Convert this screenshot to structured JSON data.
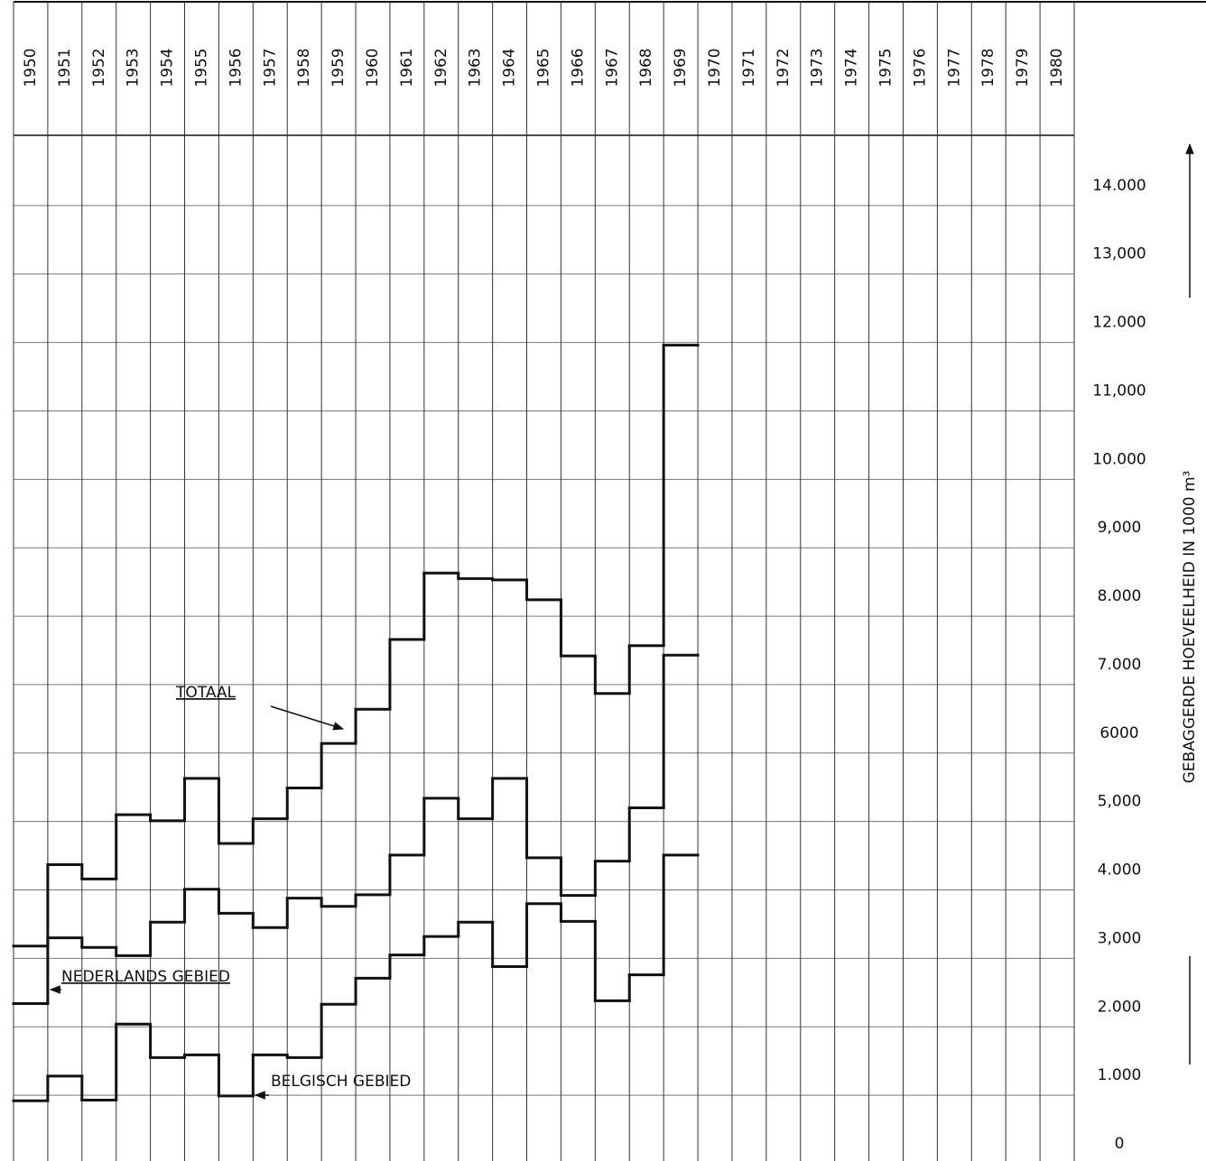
{
  "chart_data": {
    "type": "step",
    "y_label": "GEBAGGERDE HOEVEELHEID   IN 1000 m³",
    "categories": [
      "1950",
      "1951",
      "1952",
      "1953",
      "1954",
      "1955",
      "1956",
      "1957",
      "1958",
      "1959",
      "1960",
      "1961",
      "1962",
      "1963",
      "1964",
      "1965",
      "1966",
      "1967",
      "1968",
      "1969",
      "1970",
      "1971",
      "1972",
      "1973",
      "1974",
      "1975",
      "1976",
      "1977",
      "1978",
      "1979",
      "1980"
    ],
    "series": [
      {
        "name": "TOTAAL",
        "color": "#111111",
        "values": [
          3180,
          4370,
          4160,
          5100,
          5010,
          5630,
          4680,
          5040,
          5490,
          6140,
          6640,
          7660,
          8630,
          8550,
          8530,
          8240,
          7420,
          6870,
          7570,
          11960,
          null,
          null,
          null,
          null,
          null,
          null,
          null,
          null,
          null,
          null,
          null
        ]
      },
      {
        "name": "NEDERLANDS GEBIED",
        "color": "#111111",
        "values": [
          2340,
          3300,
          3160,
          3040,
          3530,
          4010,
          3660,
          3450,
          3880,
          3760,
          3930,
          4510,
          5340,
          5040,
          5630,
          4470,
          3920,
          4420,
          5200,
          7430,
          null,
          null,
          null,
          null,
          null,
          null,
          null,
          null,
          null,
          null,
          null
        ]
      },
      {
        "name": "BELGISCH GEBIED",
        "color": "#111111",
        "values": [
          920,
          1280,
          930,
          2040,
          1550,
          1590,
          990,
          1590,
          1550,
          2330,
          2710,
          3050,
          3320,
          3530,
          2880,
          3800,
          3540,
          2380,
          2760,
          4510,
          null,
          null,
          null,
          null,
          null,
          null,
          null,
          null,
          null,
          null,
          null
        ]
      }
    ],
    "ylim": [
      0,
      15000
    ],
    "yticks": [
      0,
      {
        "value": 1000,
        "label": "1.000"
      },
      {
        "value": 2000,
        "label": "2.000"
      },
      {
        "value": 3000,
        "label": "3,000"
      },
      {
        "value": 4000,
        "label": "4.000"
      },
      {
        "value": 5000,
        "label": "5,000"
      },
      {
        "value": 6000,
        "label": "6000"
      },
      {
        "value": 7000,
        "label": "7.000"
      },
      {
        "value": 8000,
        "label": "8.000"
      },
      {
        "value": 9000,
        "label": "9,000"
      },
      {
        "value": 10000,
        "label": "10.000"
      },
      {
        "value": 11000,
        "label": "11,000"
      },
      {
        "value": 12000,
        "label": "12.000"
      },
      {
        "value": 13000,
        "label": "13,000"
      },
      {
        "value": 14000,
        "label": "14.000"
      }
    ],
    "grid": true
  }
}
